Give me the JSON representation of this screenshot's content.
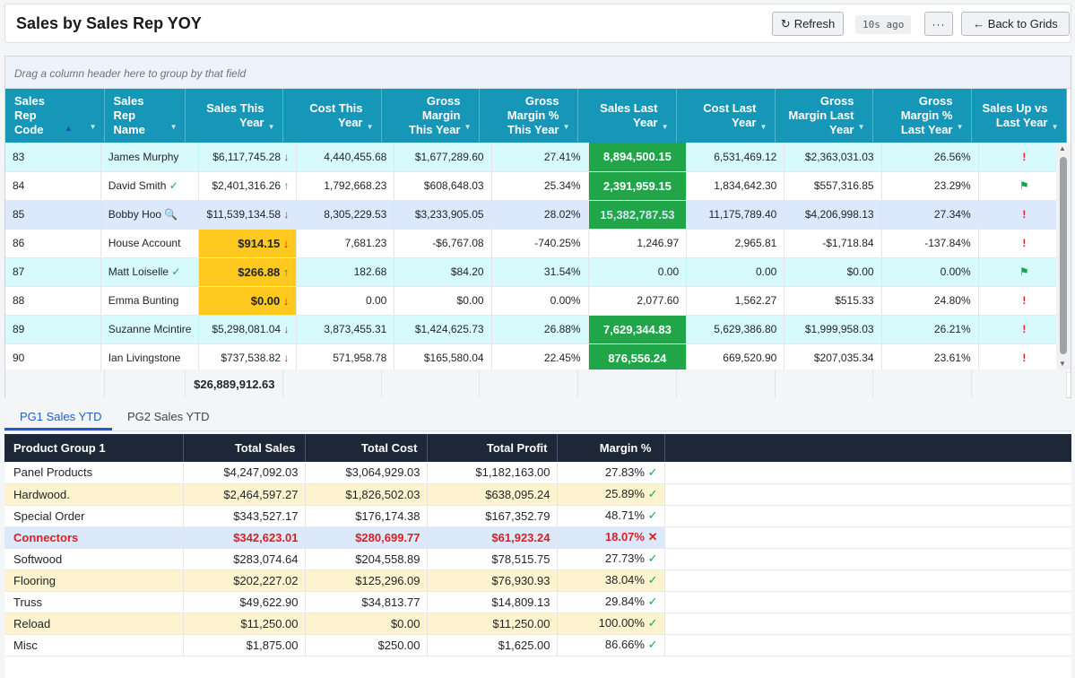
{
  "header": {
    "title": "Sales by Sales Rep YOY",
    "refresh_label": "Refresh",
    "refresh_age": "10s ago",
    "more_label": "···",
    "back_label": "← Back to Grids"
  },
  "grid": {
    "group_hint": "Drag a column header here to group by that field",
    "columns": [
      "Sales Rep Code",
      "Sales Rep Name",
      "Sales This Year",
      "Cost This Year",
      "Gross Margin This Year",
      "Gross Margin % This Year",
      "Sales Last Year",
      "Cost Last Year",
      "Gross Margin Last Year",
      "Gross Margin % Last Year",
      "Sales Up vs Last Year"
    ],
    "sort_column": "Sales Rep Code",
    "rows": [
      {
        "code": "83",
        "name": "James Murphy",
        "name_icon": "",
        "sales_ty": "$6,117,745.28",
        "trend": "down",
        "cost_ty": "4,440,455.68",
        "gm_ty": "$1,677,289.60",
        "gmp_ty": "27.41%",
        "sales_ly": "8,894,500.15",
        "cost_ly": "6,531,469.12",
        "gm_ly": "$2,363,031.03",
        "gmp_ly": "26.56%",
        "up_vs_ly": "!"
      },
      {
        "code": "84",
        "name": "David Smith",
        "name_icon": "✓",
        "sales_ty": "$2,401,316.26",
        "trend": "up",
        "cost_ty": "1,792,668.23",
        "gm_ty": "$608,648.03",
        "gmp_ty": "25.34%",
        "sales_ly": "2,391,959.15",
        "cost_ly": "1,834,642.30",
        "gm_ly": "$557,316.85",
        "gmp_ly": "23.29%",
        "up_vs_ly": "flag"
      },
      {
        "code": "85",
        "name": "Bobby Hoo",
        "name_icon": "search",
        "sales_ty": "$11,539,134.58",
        "trend": "down",
        "cost_ty": "8,305,229.53",
        "gm_ty": "$3,233,905.05",
        "gmp_ty": "28.02%",
        "sales_ly": "15,382,787.53",
        "cost_ly": "11,175,789.40",
        "gm_ly": "$4,206,998.13",
        "gmp_ly": "27.34%",
        "up_vs_ly": "!"
      },
      {
        "code": "86",
        "name": "House Account",
        "name_icon": "",
        "sales_ty": "$914.15",
        "trend": "down",
        "cost_ty": "7,681.23",
        "gm_ty": "-$6,767.08",
        "gmp_ty": "-740.25%",
        "sales_ly": "1,246.97",
        "cost_ly": "2,965.81",
        "gm_ly": "-$1,718.84",
        "gmp_ly": "-137.84%",
        "up_vs_ly": "!"
      },
      {
        "code": "87",
        "name": "Matt Loiselle",
        "name_icon": "✓",
        "sales_ty": "$266.88",
        "trend": "up",
        "cost_ty": "182.68",
        "gm_ty": "$84.20",
        "gmp_ty": "31.54%",
        "sales_ly": "0.00",
        "cost_ly": "0.00",
        "gm_ly": "$0.00",
        "gmp_ly": "0.00%",
        "up_vs_ly": "flag"
      },
      {
        "code": "88",
        "name": "Emma Bunting",
        "name_icon": "",
        "sales_ty": "$0.00",
        "trend": "down",
        "cost_ty": "0.00",
        "gm_ty": "$0.00",
        "gmp_ty": "0.00%",
        "sales_ly": "2,077.60",
        "cost_ly": "1,562.27",
        "gm_ly": "$515.33",
        "gmp_ly": "24.80%",
        "up_vs_ly": "!"
      },
      {
        "code": "89",
        "name": "Suzanne Mcintire",
        "name_icon": "",
        "sales_ty": "$5,298,081.04",
        "trend": "down",
        "cost_ty": "3,873,455.31",
        "gm_ty": "$1,424,625.73",
        "gmp_ty": "26.88%",
        "sales_ly": "7,629,344.83",
        "cost_ly": "5,629,386.80",
        "gm_ly": "$1,999,958.03",
        "gmp_ly": "26.21%",
        "up_vs_ly": "!"
      },
      {
        "code": "90",
        "name": "Ian Livingstone",
        "name_icon": "",
        "sales_ty": "$737,538.82",
        "trend": "down",
        "cost_ty": "571,958.78",
        "gm_ty": "$165,580.04",
        "gmp_ty": "22.45%",
        "sales_ly": "876,556.24",
        "cost_ly": "669,520.90",
        "gm_ly": "$207,035.34",
        "gmp_ly": "23.61%",
        "up_vs_ly": "!"
      }
    ],
    "total_sales_ty": "$26,889,912.63",
    "trend_icons": {
      "up": "↑",
      "down": "↓"
    },
    "flag_icon": "⚑",
    "search_icon": "🔍"
  },
  "tabs": [
    {
      "label": "PG1 Sales YTD",
      "active": true
    },
    {
      "label": "PG2 Sales YTD",
      "active": false
    }
  ],
  "product_groups": {
    "columns": [
      "Product Group 1",
      "Total Sales",
      "Total Cost",
      "Total Profit",
      "Margin %"
    ],
    "rows": [
      {
        "group": "Panel Products",
        "sales": "$4,247,092.03",
        "cost": "$3,064,929.03",
        "profit": "$1,182,163.00",
        "margin": "27.83%",
        "status": "ok"
      },
      {
        "group": "Hardwood.",
        "sales": "$2,464,597.27",
        "cost": "$1,826,502.03",
        "profit": "$638,095.24",
        "margin": "25.89%",
        "status": "ok"
      },
      {
        "group": "Special Order",
        "sales": "$343,527.17",
        "cost": "$176,174.38",
        "profit": "$167,352.79",
        "margin": "48.71%",
        "status": "ok"
      },
      {
        "group": "Connectors",
        "sales": "$342,623.01",
        "cost": "$280,699.77",
        "profit": "$61,923.24",
        "margin": "18.07%",
        "status": "bad"
      },
      {
        "group": "Softwood",
        "sales": "$283,074.64",
        "cost": "$204,558.89",
        "profit": "$78,515.75",
        "margin": "27.73%",
        "status": "ok"
      },
      {
        "group": "Flooring",
        "sales": "$202,227.02",
        "cost": "$125,296.09",
        "profit": "$76,930.93",
        "margin": "38.04%",
        "status": "ok"
      },
      {
        "group": "Truss",
        "sales": "$49,622.90",
        "cost": "$34,813.77",
        "profit": "$14,809.13",
        "margin": "29.84%",
        "status": "ok"
      },
      {
        "group": "Reload",
        "sales": "$11,250.00",
        "cost": "$0.00",
        "profit": "$11,250.00",
        "margin": "100.00%",
        "status": "ok"
      },
      {
        "group": "Misc",
        "sales": "$1,875.00",
        "cost": "$250.00",
        "profit": "$1,625.00",
        "margin": "86.66%",
        "status": "ok"
      }
    ],
    "status_icons": {
      "ok": "✓",
      "bad": "✕"
    }
  }
}
